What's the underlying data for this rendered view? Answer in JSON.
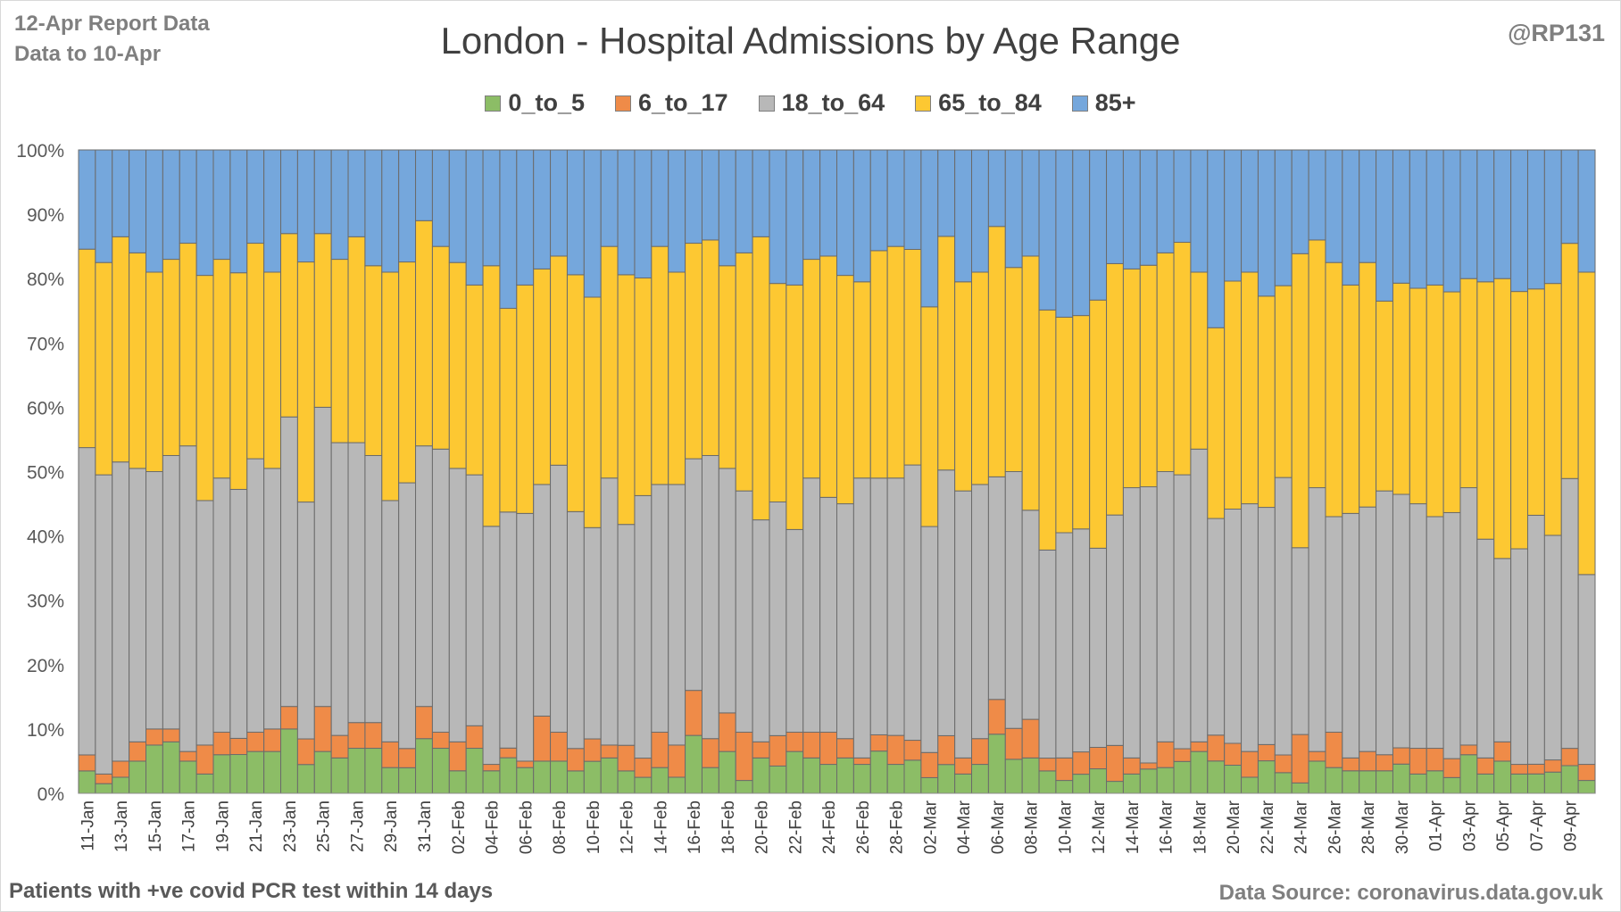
{
  "header": {
    "report_label": "12-Apr Report Data",
    "data_to_label": "Data to 10-Apr",
    "handle": "@RP131"
  },
  "footer": {
    "note": "Patients with  +ve covid PCR test within 14 days",
    "source": "Data Source: coronavirus.data.gov.uk"
  },
  "chart_data": {
    "type": "bar",
    "stacked": "percent",
    "title": "London - Hospital Admissions by Age Range",
    "legend_position": "top",
    "grid": true,
    "ylim": [
      0,
      100
    ],
    "y_ticks": [
      "0%",
      "10%",
      "20%",
      "30%",
      "40%",
      "50%",
      "60%",
      "70%",
      "80%",
      "90%",
      "100%"
    ],
    "categories": [
      "11-Jan",
      "12-Jan",
      "13-Jan",
      "14-Jan",
      "15-Jan",
      "16-Jan",
      "17-Jan",
      "18-Jan",
      "19-Jan",
      "20-Jan",
      "21-Jan",
      "22-Jan",
      "23-Jan",
      "24-Jan",
      "25-Jan",
      "26-Jan",
      "27-Jan",
      "28-Jan",
      "29-Jan",
      "30-Jan",
      "31-Jan",
      "01-Feb",
      "02-Feb",
      "03-Feb",
      "04-Feb",
      "05-Feb",
      "06-Feb",
      "07-Feb",
      "08-Feb",
      "09-Feb",
      "10-Feb",
      "11-Feb",
      "12-Feb",
      "13-Feb",
      "14-Feb",
      "15-Feb",
      "16-Feb",
      "17-Feb",
      "18-Feb",
      "19-Feb",
      "20-Feb",
      "21-Feb",
      "22-Feb",
      "23-Feb",
      "24-Feb",
      "25-Feb",
      "26-Feb",
      "27-Feb",
      "28-Feb",
      "01-Mar",
      "02-Mar",
      "03-Mar",
      "04-Mar",
      "05-Mar",
      "06-Mar",
      "07-Mar",
      "08-Mar",
      "09-Mar",
      "10-Mar",
      "11-Mar",
      "12-Mar",
      "13-Mar",
      "14-Mar",
      "15-Mar",
      "16-Mar",
      "17-Mar",
      "18-Mar",
      "19-Mar",
      "20-Mar",
      "21-Mar",
      "22-Mar",
      "23-Mar",
      "24-Mar",
      "25-Mar",
      "26-Mar",
      "27-Mar",
      "28-Mar",
      "29-Mar",
      "30-Mar",
      "31-Mar",
      "01-Apr",
      "02-Apr",
      "03-Apr",
      "04-Apr",
      "05-Apr",
      "06-Apr",
      "07-Apr",
      "08-Apr",
      "09-Apr",
      "10-Apr"
    ],
    "label_every": 2,
    "series": [
      {
        "name": "0_to_5",
        "color": "#8cbd66",
        "values": [
          3.5,
          1.5,
          2.5,
          5,
          7.5,
          8,
          5,
          3,
          6,
          6,
          6.5,
          6.5,
          10,
          4.5,
          6.5,
          5.5,
          7,
          7,
          4,
          4,
          8.5,
          7,
          3.5,
          7,
          3.5,
          5.5,
          4,
          5,
          5,
          3.5,
          5,
          5.5,
          3.5,
          2.5,
          4,
          2.5,
          9,
          4,
          6.5,
          2,
          5.5,
          4.5,
          6.5,
          5.5,
          4.5,
          5.5,
          4.5,
          6.5,
          4.5,
          5,
          2.5,
          4.5,
          3,
          4.5,
          8.5,
          5.5,
          5.5,
          3.5,
          2,
          3,
          4,
          2,
          3,
          4,
          4,
          5,
          6.5,
          5,
          4.5,
          2.5,
          5,
          3.5,
          1.5,
          5,
          4,
          3.5,
          3.5,
          3.5,
          4.5,
          3,
          3.5,
          2.5,
          6,
          3,
          5,
          3,
          3,
          3.5,
          4,
          2
        ]
      },
      {
        "name": "6_to_17",
        "color": "#ef8b48",
        "values": [
          2.5,
          1.5,
          2.5,
          3,
          2.5,
          2,
          1.5,
          4.5,
          3.5,
          2.5,
          3,
          3.5,
          3.5,
          4,
          7,
          3.5,
          4,
          4,
          4,
          3,
          5,
          2.5,
          4.5,
          3.5,
          1,
          1.5,
          1,
          7,
          4.5,
          3.5,
          3.5,
          2,
          4,
          3,
          5.5,
          5,
          7,
          4.5,
          6,
          7.5,
          2.5,
          5,
          3,
          4,
          5,
          3,
          1,
          2.5,
          4.5,
          3,
          4,
          4.5,
          2.5,
          4,
          5,
          5,
          6,
          2,
          3.5,
          3.5,
          3.5,
          6,
          2.5,
          1,
          4,
          2,
          1.5,
          4,
          3.5,
          4,
          2.5,
          3,
          7,
          1.5,
          5.5,
          2,
          3,
          2.5,
          2.5,
          4,
          3.5,
          3,
          1.5,
          2.5,
          3,
          1.5,
          1.5,
          2,
          2.5,
          2.5
        ]
      },
      {
        "name": "18_to_64",
        "color": "#b8b8b8",
        "values": [
          48,
          46.5,
          46.5,
          42.5,
          40,
          42.5,
          47.5,
          38,
          39.5,
          38.5,
          42.5,
          40.5,
          45,
          37,
          46.5,
          45.5,
          43.5,
          41.5,
          37.5,
          41.5,
          40.5,
          44,
          42.5,
          39,
          37,
          36.5,
          38.5,
          36,
          41.5,
          37,
          33,
          41.5,
          34.5,
          41,
          38.5,
          40.5,
          36,
          44,
          38,
          37.5,
          34.5,
          38.5,
          31.5,
          39.5,
          36.5,
          36.5,
          43.5,
          39.5,
          40,
          41.5,
          36,
          41.5,
          41.5,
          39.5,
          32,
          41.5,
          32.5,
          32.5,
          35,
          35,
          32.5,
          38.5,
          42,
          45.5,
          42,
          43,
          45.5,
          33.5,
          37.5,
          38.5,
          36.5,
          47,
          27,
          41,
          33.5,
          38,
          38,
          41,
          39,
          38,
          36,
          39,
          40,
          34,
          28.5,
          33.5,
          38.5,
          37,
          39,
          29.5
        ]
      },
      {
        "name": "65_to_84",
        "color": "#fdc832",
        "values": [
          31,
          33,
          35,
          33.5,
          31,
          30.5,
          31.5,
          35,
          34,
          33.5,
          33.5,
          30.5,
          28.5,
          37.5,
          27,
          28.5,
          32,
          29.5,
          35.5,
          34.5,
          35,
          31.5,
          32,
          29.5,
          40.5,
          31.5,
          35.5,
          33.5,
          32.5,
          37,
          36,
          36,
          39,
          34,
          37,
          33,
          33.5,
          33.5,
          31.5,
          37,
          44,
          36,
          38,
          34,
          37.5,
          35.5,
          30.5,
          35,
          36,
          32.5,
          35,
          36.5,
          32.5,
          33,
          36,
          33,
          39.5,
          37.5,
          33.5,
          33.5,
          40.5,
          42,
          34,
          36.5,
          34,
          36.5,
          27.5,
          29.5,
          36.5,
          36,
          32.5,
          32.5,
          42.5,
          38.5,
          39.5,
          35.5,
          38,
          29.5,
          32.5,
          33.5,
          36,
          35,
          32.5,
          40,
          43.5,
          40,
          35,
          41.5,
          34,
          47
        ]
      },
      {
        "name": "85+",
        "color": "#75a7dc",
        "values": [
          15.5,
          17.5,
          13.5,
          16,
          19,
          17,
          14.5,
          19.5,
          17,
          19,
          14.5,
          19,
          13,
          17.5,
          13,
          17,
          13.5,
          18,
          19,
          17.5,
          11,
          15,
          17.5,
          21,
          18,
          24.5,
          21,
          18.5,
          16.5,
          19.5,
          23,
          15,
          19.5,
          20,
          15,
          19,
          14.5,
          14,
          18,
          16,
          13.5,
          22,
          21,
          17,
          16.5,
          19.5,
          20.5,
          15.5,
          15,
          15,
          25,
          13.5,
          20.5,
          19,
          11,
          19,
          16.5,
          25,
          26,
          26,
          24.5,
          19,
          18.5,
          19,
          16,
          14.5,
          19,
          27.5,
          21,
          19,
          22.5,
          23,
          15,
          14,
          17.5,
          21,
          17.5,
          23.5,
          20.5,
          21.5,
          21,
          22.5,
          20,
          20.5,
          20,
          22,
          21.5,
          22,
          13.5,
          19
        ]
      }
    ]
  }
}
